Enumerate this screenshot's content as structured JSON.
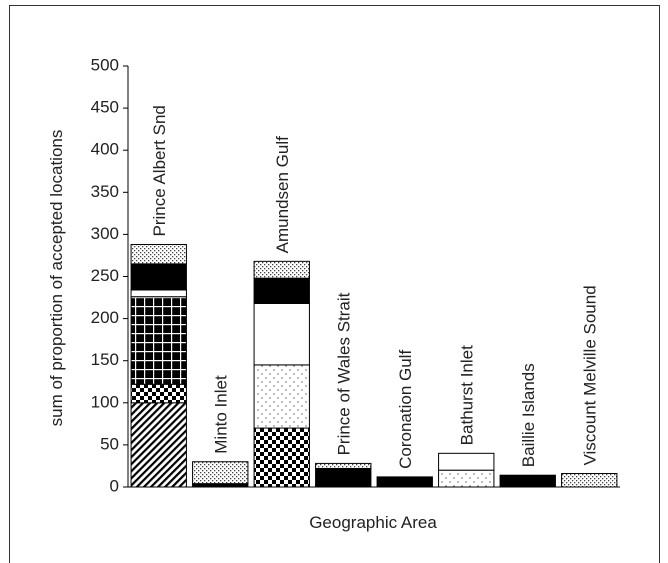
{
  "chart_data": {
    "type": "stacked-bar",
    "ylabel": "sum of proportion of accepted locations",
    "xlabel": "Geographic Area",
    "categories": [
      "Prince Albert Snd",
      "Minto Inlet",
      "Amundsen Gulf",
      "Prince of Wales Strait",
      "Coronation Gulf",
      "Bathurst Inlet",
      "Baillie Islands",
      "Viscount Melville Sound"
    ],
    "series": [
      {
        "pattern": "hatch",
        "values": [
          100,
          0,
          0,
          0,
          0,
          0,
          0,
          0
        ]
      },
      {
        "pattern": "checker",
        "values": [
          22,
          0,
          70,
          0,
          0,
          0,
          0,
          0
        ]
      },
      {
        "pattern": "grid",
        "values": [
          104,
          0,
          0,
          0,
          0,
          0,
          0,
          0
        ]
      },
      {
        "pattern": "dots",
        "values": [
          0,
          0,
          75,
          0,
          0,
          20,
          0,
          0
        ]
      },
      {
        "pattern": "white",
        "values": [
          8,
          0,
          73,
          0,
          0,
          20,
          0,
          0
        ]
      },
      {
        "pattern": "black",
        "values": [
          31,
          4,
          30,
          22,
          12,
          0,
          14,
          0
        ]
      },
      {
        "pattern": "stipple",
        "values": [
          23,
          26,
          20,
          6,
          0,
          0,
          0,
          16
        ]
      }
    ],
    "ylim": [
      0,
      500
    ],
    "yticks": [
      0,
      50,
      100,
      150,
      200,
      250,
      300,
      350,
      400,
      450,
      500
    ]
  }
}
